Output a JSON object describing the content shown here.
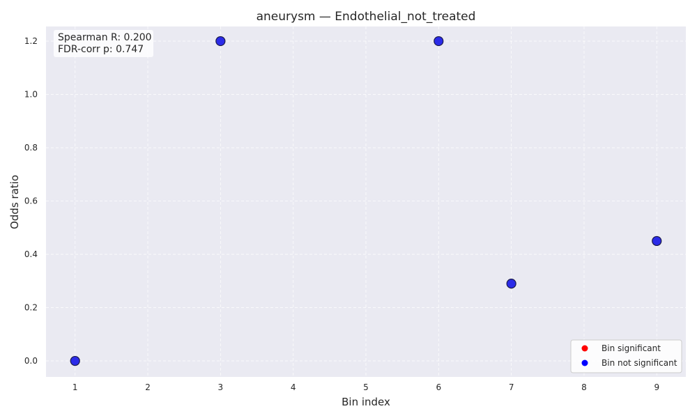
{
  "chart_data": {
    "type": "scatter",
    "title": "aneurysm — Endothelial_not_treated",
    "xlabel": "Bin index",
    "ylabel": "Odds ratio",
    "xlim": [
      0.6,
      9.4
    ],
    "ylim": [
      -0.06,
      1.255
    ],
    "x_ticks": [
      1,
      2,
      3,
      4,
      5,
      6,
      7,
      8,
      9
    ],
    "y_ticks": [
      "0.0",
      "0.2",
      "0.4",
      "0.6",
      "0.8",
      "1.0",
      "1.2"
    ],
    "grid": true,
    "legend_position": "lower-right",
    "series": [
      {
        "name": "Bin significant",
        "color": "#ff0000",
        "points": []
      },
      {
        "name": "Bin not significant",
        "color": "#0000ff",
        "points": [
          {
            "x": 1,
            "y": 0.0
          },
          {
            "x": 3,
            "y": 1.2
          },
          {
            "x": 6,
            "y": 1.2
          },
          {
            "x": 7,
            "y": 0.29
          },
          {
            "x": 9,
            "y": 0.45
          }
        ]
      }
    ],
    "annotation": {
      "line1": "Spearman R: 0.200",
      "line2": "FDR-corr p: 0.747"
    }
  },
  "colors": {
    "plot_background": "#eaeaf2",
    "marker_fill": "#2b2be8",
    "marker_edge": "#1a1a4a"
  }
}
